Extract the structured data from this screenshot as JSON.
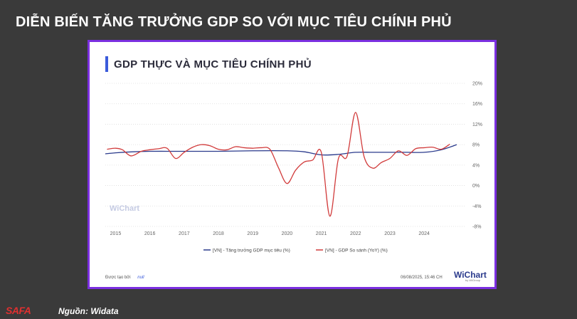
{
  "page": {
    "title": "DIỄN BIẾN TĂNG TRƯỞNG GDP SO VỚI MỤC TIÊU CHÍNH PHỦ",
    "source": "Nguồn: Widata",
    "logo_text": "SAFA"
  },
  "card": {
    "created_by_label": "Được tạo bởi",
    "created_by_value": "null",
    "timestamp": "06/08/2025, 15:46 CH",
    "brand": "WiChart",
    "brand_sub": "by WiGroup",
    "watermark": "WiChart"
  },
  "colors": {
    "background": "#3a3a3a",
    "card_border": "#7b2fe0",
    "target_line": "#2a3a8c",
    "gdp_line": "#d13b3b",
    "heading_bar": "#3b5bdb"
  },
  "chart_data": {
    "type": "line",
    "title": "GDP THỰC VÀ MỤC TIÊU CHÍNH PHỦ",
    "xlabel": "",
    "ylabel": "",
    "xlim": [
      2014.7,
      2025.2
    ],
    "ylim": [
      -8,
      20
    ],
    "x_ticks": [
      "2015",
      "2016",
      "2017",
      "2018",
      "2019",
      "2020",
      "2021",
      "2022",
      "2023",
      "2024"
    ],
    "x_tick_values": [
      2015,
      2016,
      2017,
      2018,
      2019,
      2020,
      2021,
      2022,
      2023,
      2024
    ],
    "y_ticks": [
      "20%",
      "16%",
      "12%",
      "8%",
      "4%",
      "0%",
      "-4%",
      "-8%"
    ],
    "y_tick_values": [
      20,
      16,
      12,
      8,
      4,
      0,
      -4,
      -8
    ],
    "y_axis_side": "right",
    "grid": "horizontal dotted",
    "legend_position": "bottom",
    "series": [
      {
        "name": "[VN] - Tăng trưởng GDP mục tiêu (%)",
        "x": [
          2014.7,
          2015.0,
          2015.5,
          2016.0,
          2016.5,
          2017.0,
          2018.0,
          2019.0,
          2020.0,
          2020.5,
          2021.0,
          2021.5,
          2022.0,
          2022.5,
          2023.0,
          2023.5,
          2024.0,
          2024.5,
          2024.95
        ],
        "values": [
          6.2,
          6.4,
          6.6,
          6.7,
          6.7,
          6.7,
          6.7,
          6.8,
          6.8,
          6.6,
          6.0,
          6.1,
          6.5,
          6.5,
          6.5,
          6.5,
          6.5,
          7.0,
          8.0
        ]
      },
      {
        "name": "[VN] - GDP So sánh (YoY) (%)",
        "x": [
          2014.75,
          2015.0,
          2015.2,
          2015.45,
          2015.75,
          2016.0,
          2016.25,
          2016.5,
          2016.75,
          2017.0,
          2017.25,
          2017.5,
          2017.75,
          2018.0,
          2018.25,
          2018.5,
          2018.75,
          2019.0,
          2019.25,
          2019.5,
          2019.75,
          2020.0,
          2020.25,
          2020.5,
          2020.75,
          2021.0,
          2021.25,
          2021.5,
          2021.75,
          2022.0,
          2022.25,
          2022.5,
          2022.75,
          2023.0,
          2023.25,
          2023.5,
          2023.75,
          2024.0,
          2024.25,
          2024.5,
          2024.75
        ],
        "values": [
          7.1,
          7.3,
          7.0,
          5.8,
          6.7,
          7.0,
          7.2,
          7.3,
          5.3,
          6.5,
          7.5,
          8.0,
          7.8,
          7.1,
          7.0,
          7.6,
          7.4,
          7.3,
          7.4,
          7.1,
          3.5,
          0.4,
          3.0,
          4.6,
          5.0,
          6.5,
          -6.0,
          5.3,
          5.7,
          14.3,
          5.6,
          3.4,
          4.5,
          5.3,
          6.8,
          5.9,
          7.2,
          7.4,
          7.5,
          7.1,
          8.1
        ]
      }
    ]
  }
}
